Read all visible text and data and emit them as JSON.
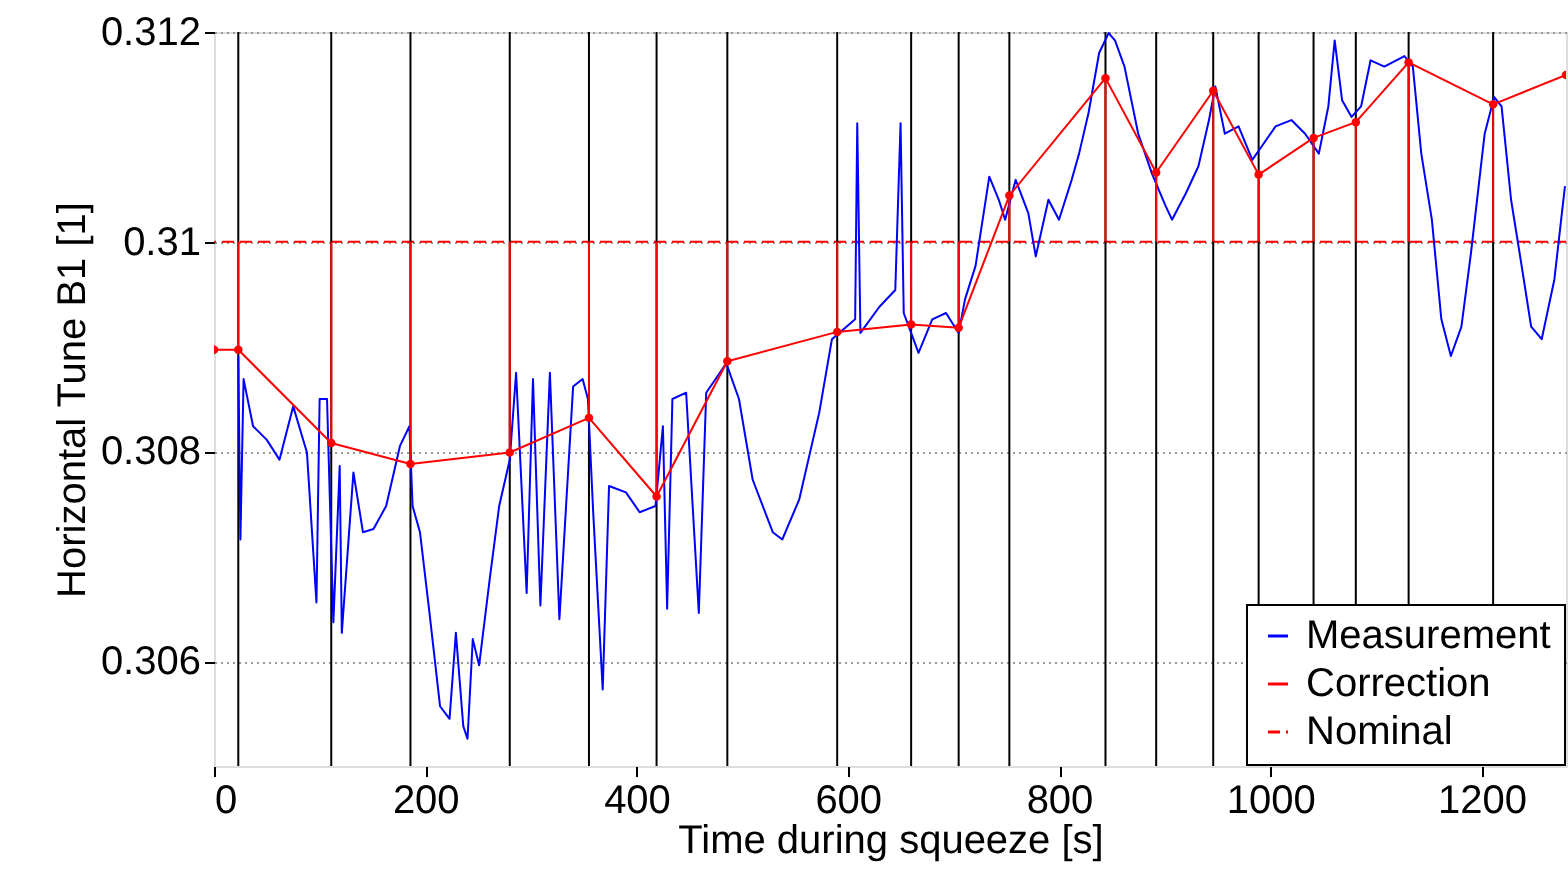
{
  "chart_data": {
    "type": "line",
    "xlabel": "Time during squeeze [s]",
    "ylabel": "Horizontal Tune B1 [1]",
    "xlim": [
      0,
      1280
    ],
    "ylim": [
      0.305,
      0.312
    ],
    "xticks": [
      0,
      200,
      400,
      600,
      800,
      1000,
      1200
    ],
    "yticks": [
      0.306,
      0.308,
      0.31,
      0.312
    ],
    "grid": "y",
    "legend": "bottom right",
    "series": [
      {
        "name": "Measurement",
        "color": "#0000ff",
        "marker": "none",
        "x": [
          23,
          25,
          28,
          37,
          50,
          62,
          75,
          88,
          97,
          100,
          107,
          113,
          119,
          121,
          132,
          141,
          151,
          163,
          176,
          185,
          188,
          195,
          204,
          214,
          223,
          229,
          236,
          240,
          245,
          251,
          261,
          270,
          280,
          286,
          296,
          302,
          309,
          318,
          327,
          340,
          349,
          354,
          359,
          368,
          374,
          390,
          403,
          418,
          425,
          429,
          434,
          447,
          459,
          466,
          485,
          497,
          510,
          529,
          538,
          554,
          573,
          585,
          607,
          609,
          612,
          630,
          645,
          650,
          653,
          667,
          680,
          693,
          705,
          711,
          721,
          734,
          743,
          749,
          759,
          771,
          778,
          790,
          800,
          812,
          819,
          828,
          838,
          847,
          853,
          862,
          875,
          888,
          901,
          907,
          920,
          932,
          942,
          948,
          957,
          970,
          983,
          992,
          1005,
          1020,
          1033,
          1046,
          1055,
          1061,
          1068,
          1077,
          1086,
          1095,
          1108,
          1127,
          1135,
          1143,
          1153,
          1162,
          1171,
          1181,
          1190,
          1203,
          1212,
          1219,
          1228,
          1238,
          1247,
          1257,
          1269,
          1279
        ],
        "values": [
          0.30891,
          0.30716,
          0.30869,
          0.30824,
          0.30811,
          0.30792,
          0.30843,
          0.30799,
          0.30656,
          0.3085,
          0.3085,
          0.30637,
          0.30786,
          0.30627,
          0.3078,
          0.30723,
          0.30726,
          0.30748,
          0.30805,
          0.30824,
          0.30748,
          0.30723,
          0.30646,
          0.30557,
          0.30545,
          0.30627,
          0.30538,
          0.30526,
          0.30621,
          0.30596,
          0.30678,
          0.30748,
          0.30792,
          0.30875,
          0.30665,
          0.30869,
          0.30653,
          0.30875,
          0.3064,
          0.30862,
          0.30869,
          0.3085,
          0.30742,
          0.30573,
          0.30767,
          0.30761,
          0.30742,
          0.30748,
          0.30824,
          0.3065,
          0.3085,
          0.30856,
          0.30646,
          0.30856,
          0.30884,
          0.3085,
          0.30773,
          0.30723,
          0.30716,
          0.30754,
          0.30837,
          0.30907,
          0.30926,
          0.31113,
          0.30913,
          0.30938,
          0.30954,
          0.31113,
          0.30932,
          0.30894,
          0.30926,
          0.30932,
          0.30913,
          0.30945,
          0.30977,
          0.31062,
          0.3104,
          0.31021,
          0.31059,
          0.31027,
          0.30986,
          0.3104,
          0.31021,
          0.31059,
          0.31084,
          0.31123,
          0.3118,
          0.31199,
          0.31192,
          0.31167,
          0.31103,
          0.31065,
          0.31034,
          0.31021,
          0.31046,
          0.31072,
          0.31116,
          0.31148,
          0.31103,
          0.3111,
          0.31078,
          0.31091,
          0.3111,
          0.31116,
          0.31103,
          0.31084,
          0.31129,
          0.31192,
          0.31135,
          0.31119,
          0.31129,
          0.31173,
          0.31167,
          0.31177,
          0.31167,
          0.31084,
          0.31021,
          0.30926,
          0.30891,
          0.30919,
          0.30989,
          0.31103,
          0.31138,
          0.31129,
          0.3104,
          0.30977,
          0.30919,
          0.30907,
          0.30964,
          0.31053
        ]
      },
      {
        "name": "Correction",
        "color": "#ff0000",
        "marker": "circle",
        "x": [
          0,
          23,
          111,
          186,
          280,
          355,
          419,
          486,
          590,
          660,
          705,
          753,
          844,
          892,
          946,
          989,
          1041,
          1081,
          1131,
          1211,
          1280
        ],
        "values": [
          0.30897,
          0.30897,
          0.30808,
          0.30788,
          0.30799,
          0.30832,
          0.30757,
          0.30886,
          0.30914,
          0.30921,
          0.30918,
          0.31044,
          0.31156,
          0.31066,
          0.31144,
          0.31064,
          0.31099,
          0.31114,
          0.31171,
          0.31131,
          0.31159
        ],
        "errors": [
          null,
          [
            0.30897,
            0.31
          ],
          [
            0.30808,
            0.31
          ],
          [
            0.30788,
            0.31
          ],
          [
            0.30799,
            0.31
          ],
          [
            0.30832,
            0.31
          ],
          [
            0.30757,
            0.31
          ],
          [
            0.30886,
            0.31
          ],
          [
            0.30914,
            0.31
          ],
          [
            0.30921,
            0.31
          ],
          [
            0.30918,
            0.31
          ],
          [
            0.31,
            0.31044
          ],
          [
            0.31,
            0.31156
          ],
          [
            0.31,
            0.31066
          ],
          [
            0.31,
            0.31144
          ],
          [
            0.31,
            0.31064
          ],
          [
            0.31,
            0.31099
          ],
          [
            0.31,
            0.31114
          ],
          [
            0.31,
            0.31171
          ],
          [
            0.31,
            0.31131
          ],
          null
        ]
      }
    ],
    "ref_lines": [
      {
        "axis": "y",
        "value": 0.31,
        "label": "Nominal",
        "color": "#ff0000",
        "line_style": "dashed"
      },
      {
        "axis": "x",
        "value": 23,
        "color": "#000000"
      },
      {
        "axis": "x",
        "value": 111,
        "color": "#000000"
      },
      {
        "axis": "x",
        "value": 186,
        "color": "#000000"
      },
      {
        "axis": "x",
        "value": 280,
        "color": "#000000"
      },
      {
        "axis": "x",
        "value": 355,
        "color": "#000000"
      },
      {
        "axis": "x",
        "value": 419,
        "color": "#000000"
      },
      {
        "axis": "x",
        "value": 486,
        "color": "#000000"
      },
      {
        "axis": "x",
        "value": 590,
        "color": "#000000"
      },
      {
        "axis": "x",
        "value": 660,
        "color": "#000000"
      },
      {
        "axis": "x",
        "value": 705,
        "color": "#000000"
      },
      {
        "axis": "x",
        "value": 753,
        "color": "#000000"
      },
      {
        "axis": "x",
        "value": 844,
        "color": "#000000"
      },
      {
        "axis": "x",
        "value": 892,
        "color": "#000000"
      },
      {
        "axis": "x",
        "value": 946,
        "color": "#000000"
      },
      {
        "axis": "x",
        "value": 989,
        "color": "#000000"
      },
      {
        "axis": "x",
        "value": 1041,
        "color": "#000000"
      },
      {
        "axis": "x",
        "value": 1081,
        "color": "#000000"
      },
      {
        "axis": "x",
        "value": 1131,
        "color": "#000000"
      },
      {
        "axis": "x",
        "value": 1211,
        "color": "#000000"
      }
    ]
  }
}
